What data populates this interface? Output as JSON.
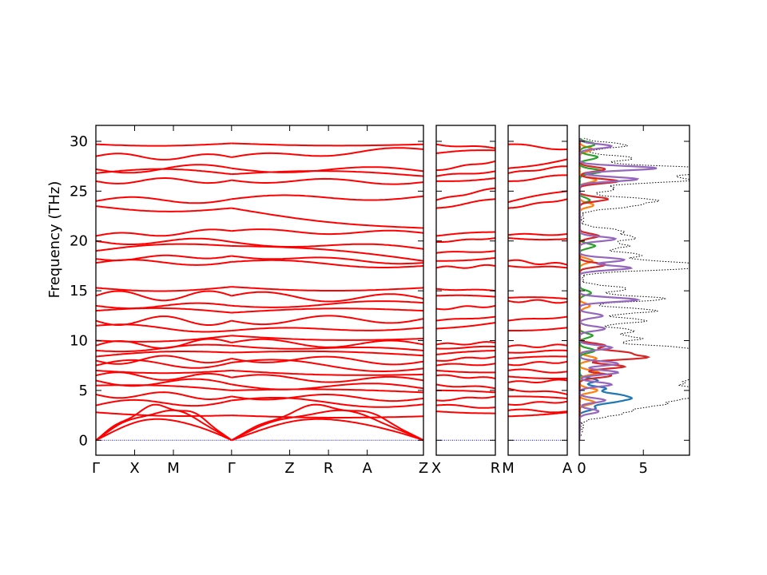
{
  "chart_data": {
    "type": "line",
    "ylabel": "Frequency (THz)",
    "ylim": [
      -1.5,
      31.6
    ],
    "yticks": [
      0,
      5,
      10,
      15,
      20,
      25,
      30
    ],
    "colors": {
      "band": "#ff0000",
      "zero_line": "#0000cc",
      "dos_total": "#000000",
      "pdos": [
        "#1f77b4",
        "#ff7f0e",
        "#2ca02c",
        "#d62728",
        "#9467bd"
      ]
    },
    "panels": [
      {
        "id": "panel1",
        "ticks": [
          {
            "label": "Γ",
            "x": 0
          },
          {
            "label": "X",
            "x": 1
          },
          {
            "label": "M",
            "x": 2
          },
          {
            "label": "Γ",
            "x": 3.5
          },
          {
            "label": "Z",
            "x": 5
          },
          {
            "label": "R",
            "x": 6
          },
          {
            "label": "A",
            "x": 7
          },
          {
            "label": "Z",
            "x": 8.45
          }
        ],
        "xrange": [
          0,
          8.45
        ],
        "segments": [
          {
            "x0": 0,
            "x1": 3.5,
            "acoustic": true,
            "optical_start": [
              2.8,
              3.5,
              4.6,
              5.5,
              6.0,
              6.5,
              7.0,
              7.5,
              8.0,
              8.4,
              9.0,
              9.5,
              10.0,
              11.5,
              12.0,
              13.0,
              13.5,
              14.5,
              15.3,
              17.8,
              18.2,
              19.0,
              20.0,
              20.5,
              23.5,
              24.0,
              26.0,
              26.8,
              27.2,
              28.5,
              29.7
            ],
            "optical_end": [
              2.5,
              4.0,
              4.4,
              5.0,
              5.6,
              6.3,
              7.0,
              7.8,
              8.2,
              8.8,
              9.5,
              9.8,
              10.5,
              11.0,
              12.0,
              12.8,
              13.5,
              14.5,
              15.4,
              17.9,
              18.5,
              19.5,
              19.9,
              21.0,
              23.3,
              24.2,
              26.1,
              26.7,
              27.3,
              28.4,
              29.8
            ],
            "wiggle": 1.0
          },
          {
            "x0": 3.5,
            "x1": 8.45,
            "acoustic": true,
            "optical_start": [
              2.5,
              4.0,
              4.4,
              5.0,
              5.6,
              6.3,
              7.0,
              7.8,
              8.2,
              8.8,
              9.5,
              9.8,
              10.5,
              11.0,
              12.0,
              12.8,
              13.5,
              14.5,
              15.4,
              17.9,
              18.5,
              19.5,
              19.9,
              21.0,
              23.3,
              24.2,
              26.1,
              26.7,
              27.3,
              28.4,
              29.8
            ],
            "optical_end": [
              2.4,
              3.6,
              4.2,
              4.8,
              5.2,
              6.0,
              6.6,
              7.2,
              7.9,
              8.5,
              9.0,
              9.6,
              10.2,
              11.3,
              12.2,
              13.0,
              13.8,
              14.2,
              15.3,
              17.5,
              17.8,
              18.0,
              19.2,
              20.8,
              21.3,
              24.5,
              25.9,
              26.5,
              27.0,
              29.2,
              29.7
            ],
            "wiggle": 0.9
          }
        ]
      },
      {
        "id": "panel2",
        "ticks": [
          {
            "label": "X",
            "x": 0
          },
          {
            "label": "R",
            "x": 1
          }
        ],
        "xrange": [
          0,
          1
        ],
        "segments": [
          {
            "x0": 0,
            "x1": 1,
            "acoustic": false,
            "optical_start": [
              2.9,
              3.5,
              4.0,
              5.0,
              5.6,
              6.5,
              7.0,
              7.5,
              8.0,
              8.6,
              9.2,
              9.6,
              11.2,
              12.0,
              13.2,
              14.5,
              15.2,
              17.3,
              18.0,
              18.8,
              19.9,
              20.5,
              23.3,
              24.1,
              26.0,
              26.5,
              27.1,
              28.8,
              29.7
            ],
            "optical_end": [
              2.7,
              3.3,
              4.4,
              4.8,
              5.2,
              6.2,
              6.8,
              7.7,
              8.4,
              9.0,
              9.4,
              9.8,
              11.8,
              12.4,
              13.5,
              14.4,
              15.0,
              17.5,
              18.3,
              19.0,
              20.3,
              20.9,
              24.2,
              25.3,
              26.3,
              27.0,
              28.0,
              29.1,
              29.3
            ],
            "wiggle": 0.25
          }
        ]
      },
      {
        "id": "panel3",
        "ticks": [
          {
            "label": "M",
            "x": 0
          },
          {
            "label": "A",
            "x": 1
          }
        ],
        "xrange": [
          0,
          1
        ],
        "segments": [
          {
            "x0": 0,
            "x1": 1,
            "acoustic": false,
            "optical_start": [
              2.4,
              3.0,
              3.6,
              4.4,
              5.2,
              5.8,
              6.4,
              7.0,
              7.6,
              8.2,
              8.8,
              9.4,
              11.0,
              12.0,
              14.0,
              14.3,
              17.5,
              18.0,
              20.3,
              20.6,
              23.3,
              23.9,
              26.0,
              26.8,
              27.3,
              29.7
            ],
            "optical_end": [
              2.8,
              2.9,
              3.9,
              4.2,
              4.6,
              6.0,
              6.2,
              6.9,
              7.9,
              8.4,
              9.0,
              9.5,
              11.3,
              12.4,
              13.9,
              14.2,
              17.3,
              17.6,
              20.2,
              20.7,
              24.2,
              25.0,
              26.6,
              27.5,
              28.2,
              29.2
            ],
            "wiggle": 0.3
          }
        ]
      }
    ],
    "dos": {
      "xlim": [
        0,
        8.6
      ],
      "xticks": [
        0,
        5
      ],
      "series": [
        {
          "color": "#000000",
          "style": "dotted",
          "peaks": [
            [
              2.5,
              2.0
            ],
            [
              3.0,
              3.0
            ],
            [
              3.6,
              5.5
            ],
            [
              4.2,
              6.5
            ],
            [
              4.7,
              6.0
            ],
            [
              5.2,
              7.0
            ],
            [
              5.8,
              6.5
            ],
            [
              6.4,
              8.0
            ],
            [
              7.0,
              8.5
            ],
            [
              7.6,
              9.0
            ],
            [
              8.2,
              8.5
            ],
            [
              8.7,
              8.6
            ],
            [
              9.3,
              7.0
            ],
            [
              10.2,
              4.5
            ],
            [
              11.0,
              4.0
            ],
            [
              12.0,
              5.0
            ],
            [
              13.0,
              5.8
            ],
            [
              14.2,
              6.5
            ],
            [
              15.2,
              3.5
            ],
            [
              17.3,
              7.8
            ],
            [
              17.8,
              6.5
            ],
            [
              18.6,
              4.5
            ],
            [
              19.5,
              3.5
            ],
            [
              20.3,
              4.0
            ],
            [
              21.0,
              3.0
            ],
            [
              23.5,
              3.5
            ],
            [
              24.1,
              5.5
            ],
            [
              25.2,
              2.5
            ],
            [
              26.1,
              8.2
            ],
            [
              26.8,
              7.5
            ],
            [
              27.3,
              8.5
            ],
            [
              28.3,
              4.0
            ],
            [
              29.6,
              3.5
            ]
          ]
        },
        {
          "color": "#1f77b4",
          "style": "solid",
          "peaks": [
            [
              3.2,
              1.2
            ],
            [
              3.8,
              2.0
            ],
            [
              4.2,
              3.2
            ],
            [
              4.6,
              2.4
            ],
            [
              5.2,
              2.0
            ],
            [
              6.0,
              1.4
            ]
          ]
        },
        {
          "color": "#ff7f0e",
          "style": "solid",
          "peaks": [
            [
              3.8,
              1.2
            ],
            [
              5.0,
              1.4
            ],
            [
              6.8,
              1.5
            ],
            [
              8.2,
              1.3
            ],
            [
              13.5,
              0.8
            ],
            [
              18.0,
              1.0
            ],
            [
              23.6,
              1.1
            ],
            [
              26.1,
              1.3
            ],
            [
              29.2,
              1.0
            ]
          ]
        },
        {
          "color": "#2ca02c",
          "style": "solid",
          "peaks": [
            [
              9.0,
              1.2
            ],
            [
              10.5,
              1.0
            ],
            [
              14.8,
              0.9
            ],
            [
              19.5,
              1.2
            ],
            [
              24.1,
              0.8
            ],
            [
              27.0,
              1.8
            ],
            [
              28.4,
              1.4
            ],
            [
              29.7,
              1.2
            ]
          ]
        },
        {
          "color": "#d62728",
          "style": "solid",
          "peaks": [
            [
              6.5,
              2.5
            ],
            [
              7.4,
              3.5
            ],
            [
              8.3,
              5.0
            ],
            [
              8.8,
              3.5
            ],
            [
              9.5,
              2.0
            ],
            [
              17.6,
              2.0
            ],
            [
              20.5,
              1.5
            ],
            [
              24.2,
              2.2
            ],
            [
              26.0,
              3.0
            ],
            [
              27.2,
              2.0
            ]
          ]
        },
        {
          "color": "#9467bd",
          "style": "solid",
          "peaks": [
            [
              2.9,
              1.5
            ],
            [
              4.0,
              2.0
            ],
            [
              5.6,
              2.5
            ],
            [
              6.8,
              3.0
            ],
            [
              7.7,
              3.0
            ],
            [
              9.3,
              2.5
            ],
            [
              11.2,
              2.0
            ],
            [
              12.5,
              1.8
            ],
            [
              14.1,
              4.5
            ],
            [
              17.3,
              4.0
            ],
            [
              18.1,
              3.5
            ],
            [
              20.2,
              2.8
            ],
            [
              26.2,
              4.5
            ],
            [
              27.3,
              6.0
            ],
            [
              29.5,
              2.5
            ]
          ]
        }
      ]
    }
  }
}
